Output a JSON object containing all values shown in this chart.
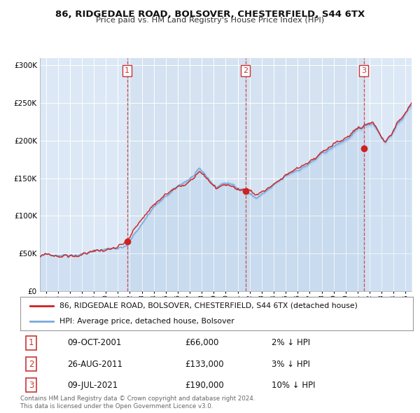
{
  "title1": "86, RIDGEDALE ROAD, BOLSOVER, CHESTERFIELD, S44 6TX",
  "title2": "Price paid vs. HM Land Registry's House Price Index (HPI)",
  "hpi_color": "#7aaadd",
  "price_color": "#cc2222",
  "plot_bg": "#dce8f5",
  "span_bg": "#ccdcee",
  "grid_color": "#ffffff",
  "vline_color": "#cc3333",
  "fig_bg": "#ffffff",
  "sale1": {
    "date_num": 2001.78,
    "price": 66000
  },
  "sale2": {
    "date_num": 2011.65,
    "price": 133000
  },
  "sale3": {
    "date_num": 2021.52,
    "price": 190000
  },
  "ylim": [
    0,
    310000
  ],
  "xlim": [
    1994.5,
    2025.5
  ],
  "yticks": [
    0,
    50000,
    100000,
    150000,
    200000,
    250000,
    300000
  ],
  "ytick_labels": [
    "£0",
    "£50K",
    "£100K",
    "£150K",
    "£200K",
    "£250K",
    "£300K"
  ],
  "xticks": [
    1995,
    1996,
    1997,
    1998,
    1999,
    2000,
    2001,
    2002,
    2003,
    2004,
    2005,
    2006,
    2007,
    2008,
    2009,
    2010,
    2011,
    2012,
    2013,
    2014,
    2015,
    2016,
    2017,
    2018,
    2019,
    2020,
    2021,
    2022,
    2023,
    2024,
    2025
  ],
  "legend_line1": "86, RIDGEDALE ROAD, BOLSOVER, CHESTERFIELD, S44 6TX (detached house)",
  "legend_line2": "HPI: Average price, detached house, Bolsover",
  "table_rows": [
    {
      "num": "1",
      "date": "09-OCT-2001",
      "price": "£66,000",
      "pct": "2% ↓ HPI"
    },
    {
      "num": "2",
      "date": "26-AUG-2011",
      "price": "£133,000",
      "pct": "3% ↓ HPI"
    },
    {
      "num": "3",
      "date": "09-JUL-2021",
      "price": "£190,000",
      "pct": "10% ↓ HPI"
    }
  ],
  "footer1": "Contains HM Land Registry data © Crown copyright and database right 2024.",
  "footer2": "This data is licensed under the Open Government Licence v3.0."
}
